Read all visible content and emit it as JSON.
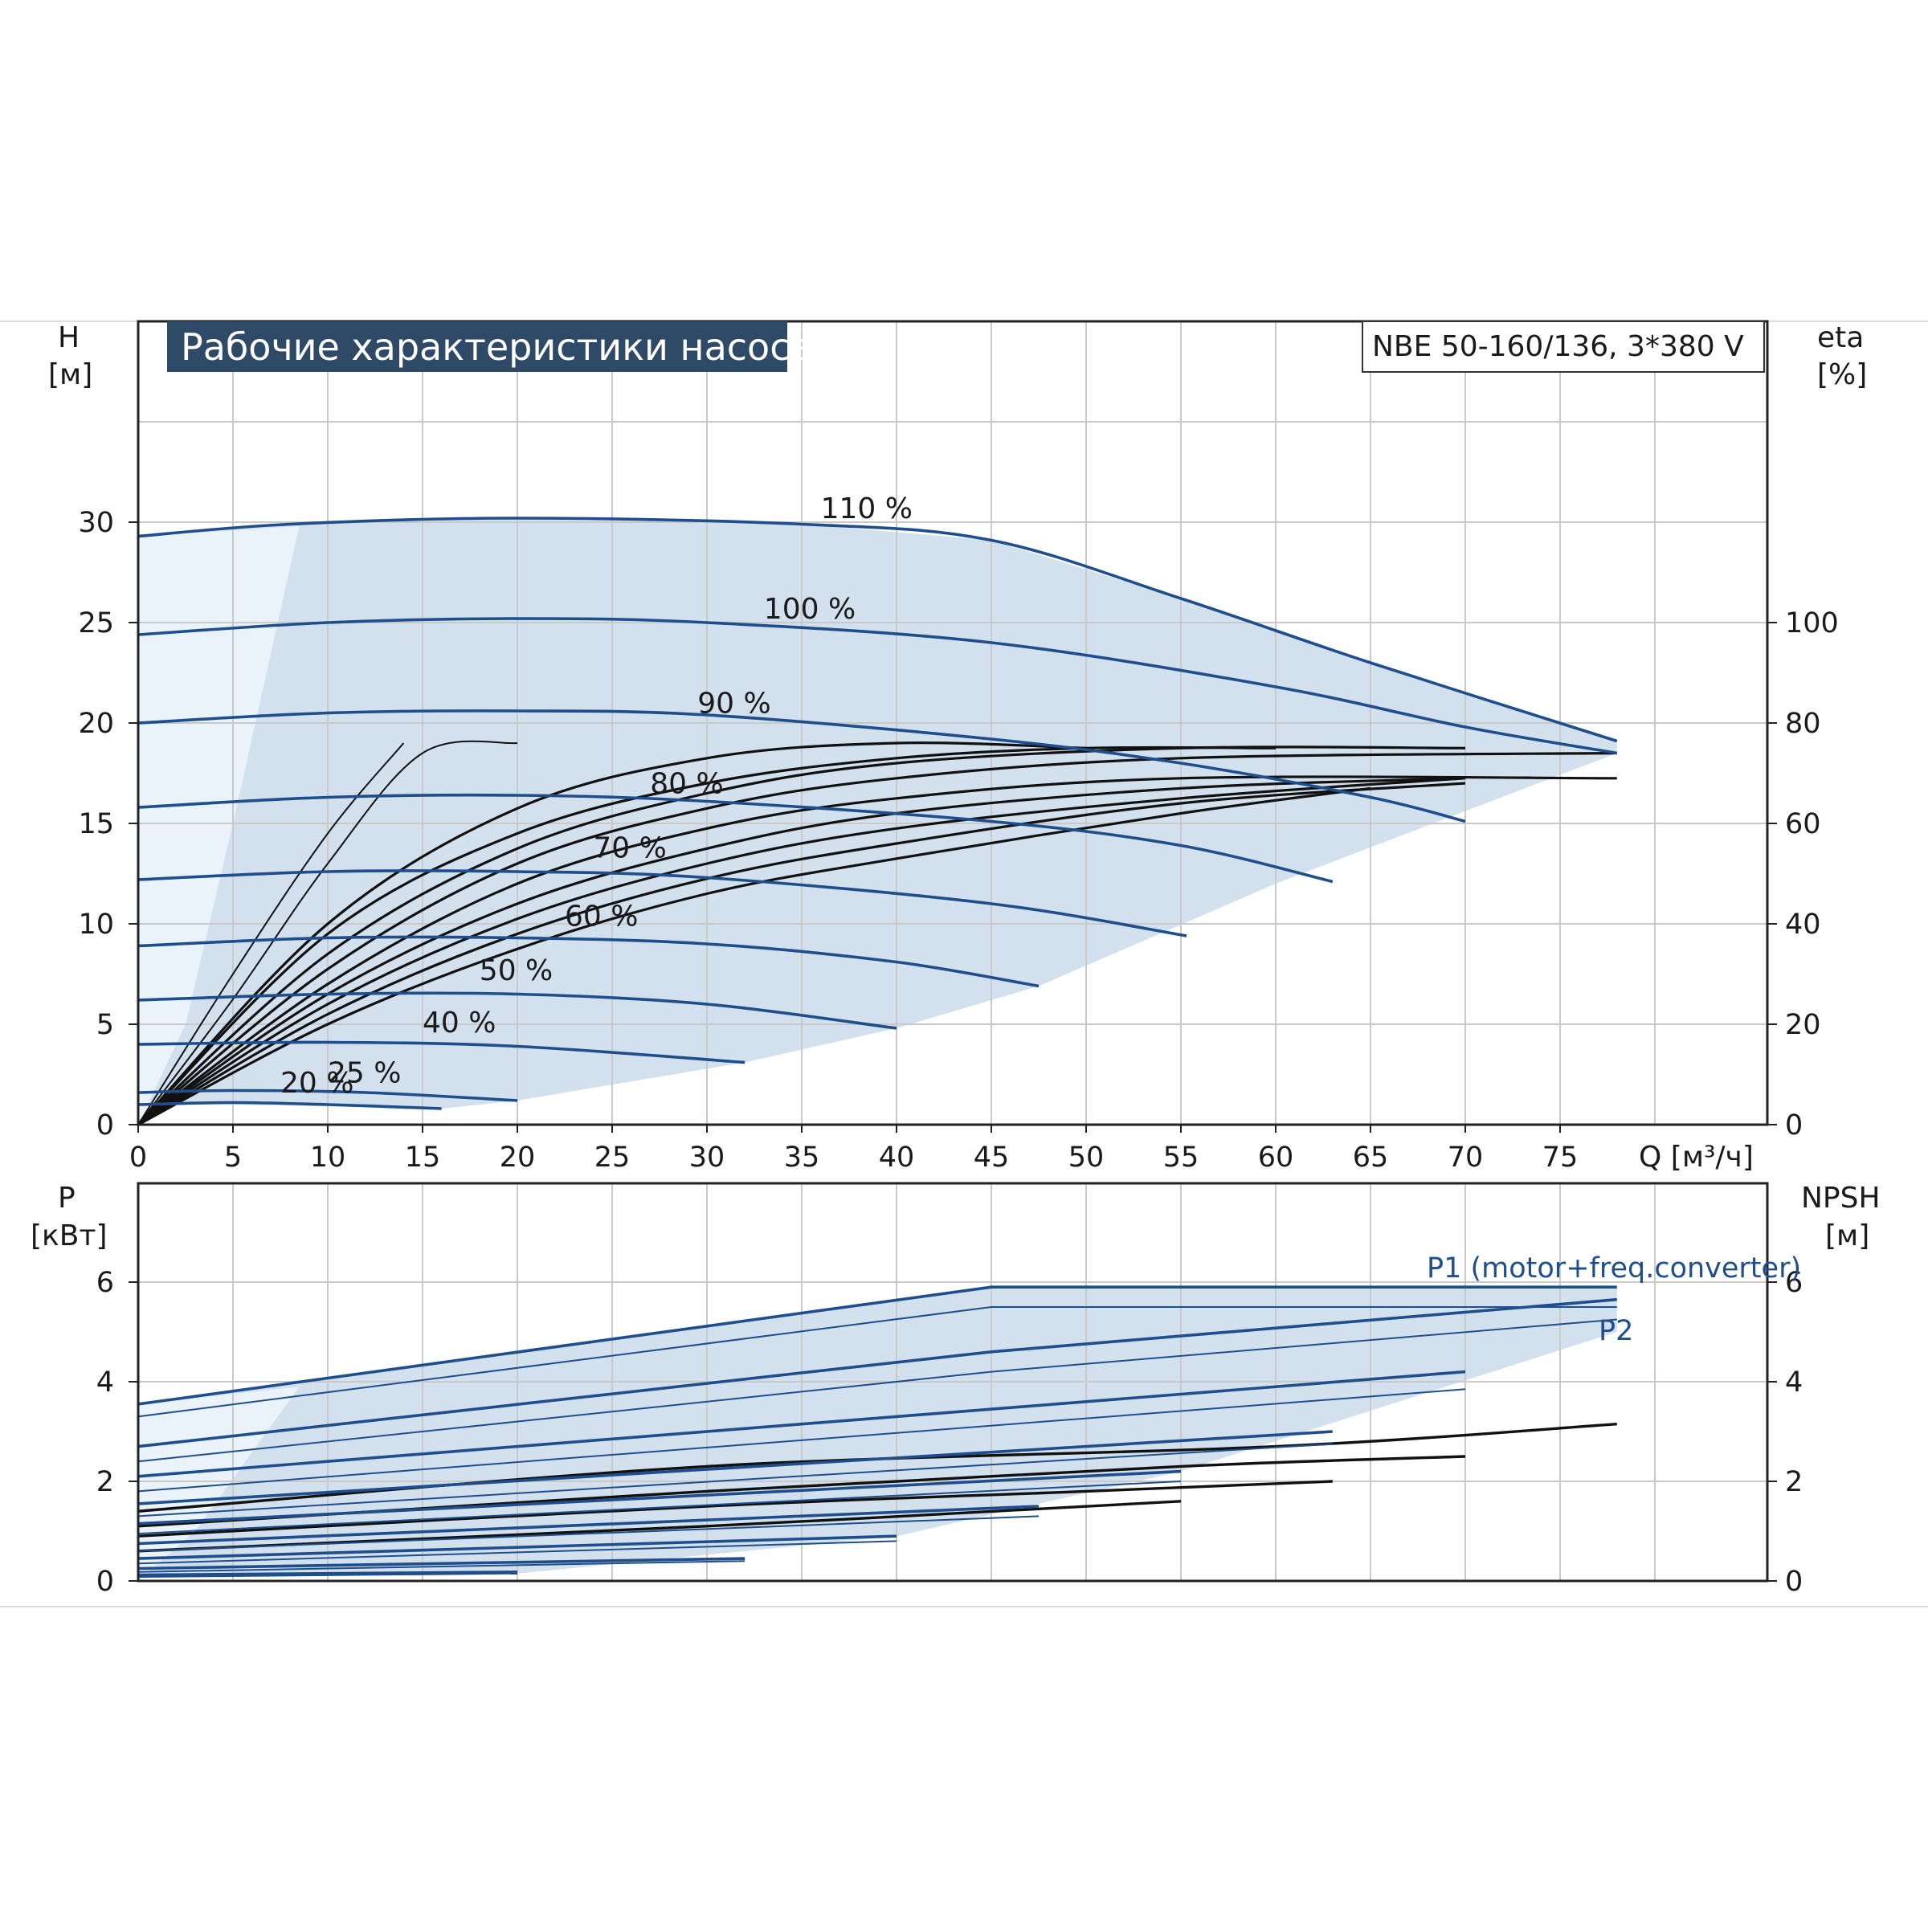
{
  "title": "Рабочие характеристики насоса",
  "model": "NBE 50-160/136, 3*380 V",
  "colors": {
    "curve_blue": "#1f4e8c",
    "efficiency_black": "#111111",
    "envelope_fill": "#d3e0ee",
    "low_flow_fill": "#eaf2fa",
    "title_bg": "#2f4a66",
    "grid": "#c9c9c9"
  },
  "chart_data": [
    {
      "type": "line",
      "panel": "head",
      "x_axis": {
        "label": "Q [м³/ч]",
        "ticks": [
          0,
          5,
          10,
          15,
          20,
          25,
          30,
          35,
          40,
          45,
          50,
          55,
          60,
          65,
          70,
          75
        ],
        "range": [
          0,
          85
        ]
      },
      "y_axis_left": {
        "label": "H",
        "unit": "[м]",
        "ticks": [
          0,
          5,
          10,
          15,
          20,
          25,
          30
        ],
        "range": [
          0,
          35
        ]
      },
      "y_axis_right": {
        "label": "eta",
        "unit": "[%]",
        "ticks": [
          0,
          20,
          40,
          60,
          80,
          100
        ],
        "range": [
          0,
          140
        ]
      },
      "grid": true,
      "series": [
        {
          "name": "110 %",
          "values": [
            [
              0,
              29.3
            ],
            [
              8,
              29.9
            ],
            [
              20,
              30.2
            ],
            [
              35,
              29.9
            ],
            [
              45,
              29.1
            ],
            [
              55,
              26.2
            ],
            [
              65,
              23.0
            ],
            [
              78,
              19.1
            ]
          ]
        },
        {
          "name": "100 %",
          "values": [
            [
              0,
              24.4
            ],
            [
              10,
              25.0
            ],
            [
              20,
              25.2
            ],
            [
              30,
              25.0
            ],
            [
              45,
              24.0
            ],
            [
              60,
              21.8
            ],
            [
              70,
              19.8
            ],
            [
              78,
              18.5
            ]
          ]
        },
        {
          "name": "90 %",
          "values": [
            [
              0,
              20.0
            ],
            [
              10,
              20.5
            ],
            [
              20,
              20.6
            ],
            [
              30,
              20.4
            ],
            [
              45,
              19.2
            ],
            [
              55,
              18.0
            ],
            [
              65,
              16.3
            ],
            [
              70,
              15.1
            ]
          ]
        },
        {
          "name": "80 %",
          "values": [
            [
              0,
              15.8
            ],
            [
              10,
              16.3
            ],
            [
              20,
              16.4
            ],
            [
              30,
              16.1
            ],
            [
              45,
              15.1
            ],
            [
              55,
              13.9
            ],
            [
              63,
              12.1
            ]
          ]
        },
        {
          "name": "70 %",
          "values": [
            [
              0,
              12.2
            ],
            [
              10,
              12.6
            ],
            [
              20,
              12.6
            ],
            [
              30,
              12.3
            ],
            [
              45,
              11.0
            ],
            [
              55.3,
              9.4
            ]
          ]
        },
        {
          "name": "60 %",
          "values": [
            [
              0,
              8.9
            ],
            [
              10,
              9.3
            ],
            [
              20,
              9.3
            ],
            [
              30,
              9.0
            ],
            [
              40,
              8.1
            ],
            [
              47.5,
              6.9
            ]
          ]
        },
        {
          "name": "50 %",
          "values": [
            [
              0,
              6.2
            ],
            [
              10,
              6.5
            ],
            [
              20,
              6.5
            ],
            [
              30,
              6.0
            ],
            [
              40,
              4.8
            ]
          ]
        },
        {
          "name": "40 %",
          "values": [
            [
              0,
              4.0
            ],
            [
              10,
              4.1
            ],
            [
              20,
              3.9
            ],
            [
              32,
              3.1
            ]
          ]
        },
        {
          "name": "25 %",
          "values": [
            [
              0,
              1.6
            ],
            [
              5,
              1.7
            ],
            [
              12,
              1.6
            ],
            [
              20,
              1.2
            ]
          ]
        },
        {
          "name": "20 %",
          "values": [
            [
              0,
              1.0
            ],
            [
              5,
              1.1
            ],
            [
              10,
              1.0
            ],
            [
              16,
              0.8
            ]
          ]
        }
      ],
      "efficiency_curves": [
        {
          "values": [
            [
              0,
              0
            ],
            [
              5,
              30
            ],
            [
              10,
              58
            ],
            [
              14,
              76
            ]
          ]
        },
        {
          "values": [
            [
              0,
              0
            ],
            [
              5,
              25
            ],
            [
              10,
              52
            ],
            [
              15,
              74
            ],
            [
              20,
              76
            ]
          ]
        },
        {
          "values": [
            [
              0,
              0
            ],
            [
              10,
              40
            ],
            [
              20,
              63
            ],
            [
              30,
              73
            ],
            [
              40,
              76
            ],
            [
              50,
              75
            ]
          ]
        },
        {
          "values": [
            [
              0,
              0
            ],
            [
              10,
              38
            ],
            [
              20,
              58
            ],
            [
              30,
              68
            ],
            [
              40,
              73
            ],
            [
              50,
              75
            ],
            [
              60,
              75
            ]
          ]
        },
        {
          "values": [
            [
              0,
              0
            ],
            [
              10,
              34
            ],
            [
              20,
              55
            ],
            [
              30,
              66
            ],
            [
              40,
              72
            ],
            [
              55,
              75
            ],
            [
              70,
              75
            ]
          ]
        },
        {
          "values": [
            [
              0,
              0
            ],
            [
              10,
              31
            ],
            [
              20,
              52
            ],
            [
              30,
              63
            ],
            [
              40,
              69
            ],
            [
              55,
              73
            ],
            [
              78,
              74
            ]
          ]
        },
        {
          "values": [
            [
              0,
              0
            ],
            [
              10,
              28
            ],
            [
              20,
              48
            ],
            [
              30,
              59
            ],
            [
              40,
              65
            ],
            [
              55,
              69
            ],
            [
              78,
              69
            ]
          ]
        },
        {
          "values": [
            [
              0,
              0
            ],
            [
              10,
              26
            ],
            [
              20,
              44
            ],
            [
              30,
              55
            ],
            [
              40,
              62
            ],
            [
              55,
              67
            ],
            [
              70,
              69
            ]
          ]
        },
        {
          "values": [
            [
              0,
              0
            ],
            [
              10,
              24
            ],
            [
              20,
              41
            ],
            [
              30,
              52
            ],
            [
              40,
              59
            ],
            [
              55,
              65
            ],
            [
              70,
              69
            ]
          ]
        },
        {
          "values": [
            [
              0,
              0
            ],
            [
              10,
              22
            ],
            [
              20,
              38
            ],
            [
              30,
              49
            ],
            [
              40,
              56
            ],
            [
              55,
              64
            ],
            [
              70,
              68
            ]
          ]
        },
        {
          "values": [
            [
              0,
              0
            ],
            [
              10,
              20
            ],
            [
              20,
              35
            ],
            [
              30,
              46
            ],
            [
              40,
              53
            ],
            [
              55,
              62
            ],
            [
              65,
              67
            ]
          ]
        }
      ],
      "envelope": [
        [
          0,
          29.3
        ],
        [
          8,
          29.9
        ],
        [
          20,
          30.2
        ],
        [
          35,
          29.9
        ],
        [
          45,
          29.1
        ],
        [
          55,
          26.2
        ],
        [
          65,
          23.0
        ],
        [
          78,
          19.1
        ],
        [
          78,
          18.5
        ],
        [
          60,
          12.0
        ],
        [
          47.5,
          6.9
        ],
        [
          40,
          4.8
        ],
        [
          32,
          3.1
        ],
        [
          20,
          1.2
        ],
        [
          16,
          0.8
        ],
        [
          5,
          1.0
        ],
        [
          0,
          1.0
        ]
      ],
      "low_flow_region": [
        [
          0,
          29.3
        ],
        [
          8.5,
          29.8
        ],
        [
          5,
          15
        ],
        [
          2.5,
          5
        ],
        [
          0,
          0
        ]
      ]
    },
    {
      "type": "line",
      "panel": "power",
      "x_axis": {
        "range": [
          0,
          85
        ]
      },
      "y_axis_left": {
        "label": "P",
        "unit": "[кВт]",
        "ticks": [
          0,
          2,
          4,
          6
        ],
        "range": [
          0,
          8
        ]
      },
      "y_axis_right": {
        "label": "NPSH",
        "unit": "[м]",
        "ticks": [
          0,
          2,
          4,
          6
        ],
        "range": [
          0,
          8
        ]
      },
      "grid": true,
      "series_labels": [
        "P1 (motor+freq.converter)",
        "P2"
      ],
      "p1_curves": [
        {
          "values": [
            [
              0,
              3.55
            ],
            [
              45,
              5.9
            ],
            [
              78,
              5.9
            ]
          ]
        },
        {
          "values": [
            [
              0,
              2.7
            ],
            [
              45,
              4.6
            ],
            [
              78,
              5.65
            ]
          ]
        },
        {
          "values": [
            [
              0,
              2.1
            ],
            [
              70,
              4.2
            ]
          ]
        },
        {
          "values": [
            [
              0,
              1.55
            ],
            [
              63,
              3.0
            ]
          ]
        },
        {
          "values": [
            [
              0,
              1.15
            ],
            [
              55,
              2.2
            ]
          ]
        },
        {
          "values": [
            [
              0,
              0.75
            ],
            [
              47.5,
              1.5
            ]
          ]
        },
        {
          "values": [
            [
              0,
              0.45
            ],
            [
              40,
              0.9
            ]
          ]
        },
        {
          "values": [
            [
              0,
              0.25
            ],
            [
              32,
              0.45
            ]
          ]
        },
        {
          "values": [
            [
              0,
              0.12
            ],
            [
              20,
              0.18
            ]
          ]
        }
      ],
      "p2_curves": [
        {
          "values": [
            [
              0,
              3.3
            ],
            [
              45,
              5.5
            ],
            [
              78,
              5.5
            ]
          ]
        },
        {
          "values": [
            [
              0,
              2.4
            ],
            [
              45,
              4.2
            ],
            [
              78,
              5.25
            ]
          ]
        },
        {
          "values": [
            [
              0,
              1.8
            ],
            [
              70,
              3.85
            ]
          ]
        },
        {
          "values": [
            [
              0,
              1.3
            ],
            [
              63,
              2.75
            ]
          ]
        },
        {
          "values": [
            [
              0,
              0.95
            ],
            [
              55,
              2.0
            ]
          ]
        },
        {
          "values": [
            [
              0,
              0.6
            ],
            [
              47.5,
              1.3
            ]
          ]
        },
        {
          "values": [
            [
              0,
              0.35
            ],
            [
              40,
              0.8
            ]
          ]
        },
        {
          "values": [
            [
              0,
              0.18
            ],
            [
              32,
              0.4
            ]
          ]
        },
        {
          "values": [
            [
              0,
              0.08
            ],
            [
              20,
              0.15
            ]
          ]
        }
      ],
      "npsh_curves": [
        {
          "values": [
            [
              0,
              1.4
            ],
            [
              30,
              2.3
            ],
            [
              60,
              2.7
            ],
            [
              78,
              3.15
            ]
          ]
        },
        {
          "values": [
            [
              0,
              1.1
            ],
            [
              30,
              1.8
            ],
            [
              55,
              2.3
            ],
            [
              70,
              2.5
            ]
          ]
        },
        {
          "values": [
            [
              0,
              0.9
            ],
            [
              30,
              1.5
            ],
            [
              50,
              1.8
            ],
            [
              63,
              2.0
            ]
          ]
        },
        {
          "values": [
            [
              0,
              0.6
            ],
            [
              30,
              1.1
            ],
            [
              55,
              1.6
            ]
          ]
        }
      ],
      "envelope": [
        [
          0,
          3.55
        ],
        [
          45,
          5.9
        ],
        [
          78,
          5.9
        ],
        [
          78,
          5.0
        ],
        [
          55,
          2.2
        ],
        [
          40,
          0.9
        ],
        [
          20,
          0.15
        ],
        [
          0,
          0.1
        ]
      ],
      "low_flow_region": [
        [
          0,
          3.55
        ],
        [
          8.5,
          3.9
        ],
        [
          3,
          1.0
        ],
        [
          0,
          0
        ]
      ]
    }
  ]
}
